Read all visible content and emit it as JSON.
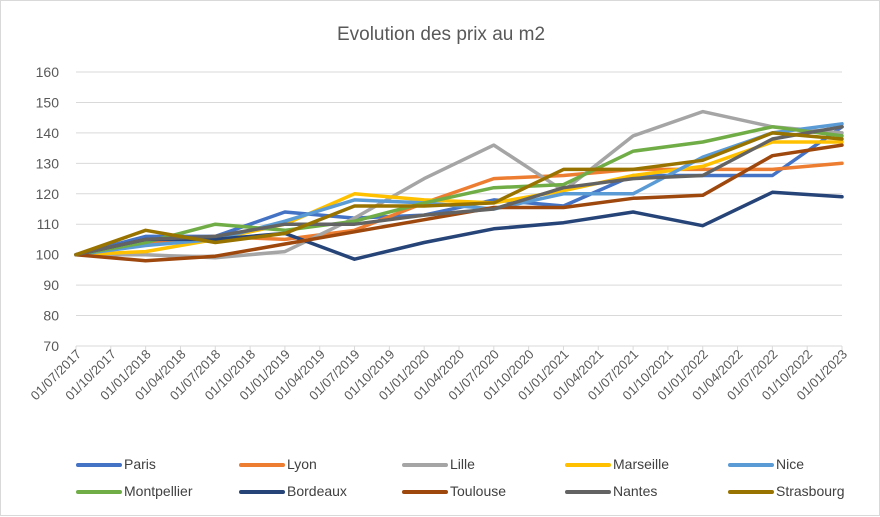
{
  "chart_data": {
    "type": "line",
    "title": "Evolution des prix au m2",
    "xlabel": "",
    "ylabel": "",
    "ylim": [
      70,
      160
    ],
    "yticks": [
      "160",
      "150",
      "140",
      "130",
      "120",
      "110",
      "100",
      "90",
      "80",
      "70"
    ],
    "categories": [
      "01/07/2017",
      "01/10/2017",
      "01/01/2018",
      "01/04/2018",
      "01/07/2018",
      "01/10/2018",
      "01/01/2019",
      "01/04/2019",
      "01/07/2019",
      "01/10/2019",
      "01/01/2020",
      "01/04/2020",
      "01/07/2020",
      "01/10/2020",
      "01/01/2021",
      "01/04/2021",
      "01/07/2021",
      "01/10/2021",
      "01/01/2022",
      "01/04/2022",
      "01/07/2022",
      "01/10/2022",
      "01/01/2023"
    ],
    "grid": true,
    "legend_position": "bottom",
    "series": [
      {
        "name": "Paris",
        "color": "#4472C4",
        "values": [
          100,
          null,
          106,
          null,
          106,
          null,
          114,
          null,
          112,
          null,
          113,
          null,
          118,
          null,
          116,
          null,
          126,
          null,
          126,
          null,
          126,
          null,
          142
        ]
      },
      {
        "name": "Lyon",
        "color": "#ED7D31",
        "values": [
          100,
          null,
          104,
          null,
          106,
          null,
          105,
          null,
          108,
          null,
          117,
          null,
          125,
          null,
          126,
          null,
          128,
          null,
          128,
          null,
          128,
          null,
          130
        ]
      },
      {
        "name": "Lille",
        "color": "#A5A5A5",
        "values": [
          100,
          null,
          100,
          null,
          99,
          null,
          101,
          null,
          112,
          null,
          125,
          null,
          136,
          null,
          121,
          null,
          139,
          null,
          147,
          null,
          142,
          null,
          140
        ]
      },
      {
        "name": "Marseille",
        "color": "#FFC000",
        "values": [
          100,
          null,
          101,
          null,
          105,
          null,
          110,
          null,
          120,
          null,
          118,
          null,
          117,
          null,
          121,
          null,
          126,
          null,
          129,
          null,
          137,
          null,
          137
        ]
      },
      {
        "name": "Nice",
        "color": "#5B9BD5",
        "values": [
          100,
          null,
          103,
          null,
          105,
          null,
          111,
          null,
          118,
          null,
          117,
          null,
          115,
          null,
          120,
          null,
          120,
          null,
          132,
          null,
          140,
          null,
          143
        ]
      },
      {
        "name": "Montpellier",
        "color": "#70AD47",
        "values": [
          100,
          null,
          104,
          null,
          110,
          null,
          108,
          null,
          111,
          null,
          117,
          null,
          122,
          null,
          123,
          null,
          134,
          null,
          137,
          null,
          142,
          null,
          139
        ]
      },
      {
        "name": "Bordeaux",
        "color": "#264478",
        "values": [
          100,
          null,
          105,
          null,
          105,
          null,
          107,
          null,
          98.5,
          null,
          104,
          null,
          108.5,
          null,
          110.5,
          null,
          114,
          null,
          109.5,
          null,
          120.5,
          null,
          119
        ]
      },
      {
        "name": "Toulouse",
        "color": "#9E480E",
        "values": [
          100,
          null,
          98,
          null,
          99.5,
          null,
          103.5,
          null,
          107.5,
          null,
          111.5,
          null,
          115.5,
          null,
          115.5,
          null,
          118.5,
          null,
          119.5,
          null,
          132.5,
          null,
          136
        ]
      },
      {
        "name": "Nantes",
        "color": "#636363",
        "values": [
          100,
          null,
          105,
          null,
          106,
          null,
          110,
          null,
          110,
          null,
          113,
          null,
          115,
          null,
          122,
          null,
          125,
          null,
          126,
          null,
          138,
          null,
          142
        ]
      },
      {
        "name": "Strasbourg",
        "color": "#997300",
        "values": [
          100,
          null,
          108,
          null,
          104,
          null,
          107,
          null,
          116,
          null,
          116,
          null,
          117,
          null,
          128,
          null,
          128,
          null,
          131,
          null,
          140,
          null,
          138
        ]
      }
    ]
  }
}
